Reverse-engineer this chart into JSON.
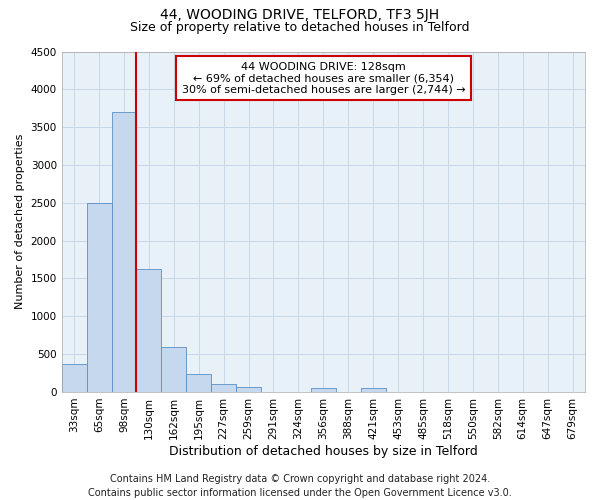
{
  "title": "44, WOODING DRIVE, TELFORD, TF3 5JH",
  "subtitle": "Size of property relative to detached houses in Telford",
  "xlabel": "Distribution of detached houses by size in Telford",
  "ylabel": "Number of detached properties",
  "categories": [
    "33sqm",
    "65sqm",
    "98sqm",
    "130sqm",
    "162sqm",
    "195sqm",
    "227sqm",
    "259sqm",
    "291sqm",
    "324sqm",
    "356sqm",
    "388sqm",
    "421sqm",
    "453sqm",
    "485sqm",
    "518sqm",
    "550sqm",
    "582sqm",
    "614sqm",
    "647sqm",
    "679sqm"
  ],
  "values": [
    375,
    2500,
    3700,
    1620,
    600,
    240,
    100,
    60,
    0,
    0,
    50,
    0,
    50,
    0,
    0,
    0,
    0,
    0,
    0,
    0,
    0
  ],
  "bar_color": "#c5d8ee",
  "bar_edge_color": "#5a8fc4",
  "vline_color": "#cc0000",
  "vline_index": 3,
  "annotation_text": "44 WOODING DRIVE: 128sqm\n← 69% of detached houses are smaller (6,354)\n30% of semi-detached houses are larger (2,744) →",
  "annotation_box_facecolor": "#ffffff",
  "annotation_box_edgecolor": "#cc0000",
  "ylim": [
    0,
    4500
  ],
  "yticks": [
    0,
    500,
    1000,
    1500,
    2000,
    2500,
    3000,
    3500,
    4000,
    4500
  ],
  "grid_color": "#c8d8e8",
  "bg_color": "#e8f0f8",
  "footer": "Contains HM Land Registry data © Crown copyright and database right 2024.\nContains public sector information licensed under the Open Government Licence v3.0.",
  "title_fontsize": 10,
  "subtitle_fontsize": 9,
  "xlabel_fontsize": 9,
  "ylabel_fontsize": 8,
  "tick_fontsize": 7.5,
  "annot_fontsize": 8,
  "footer_fontsize": 7
}
